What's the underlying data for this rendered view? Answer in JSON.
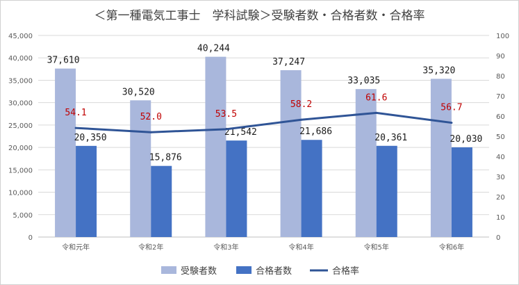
{
  "chart_data": {
    "type": "bar",
    "title": "＜第一種電気工事士　学科試験＞受験者数・合格者数・合格率",
    "categories": [
      "令和元年",
      "令和2年",
      "令和3年",
      "令和4年",
      "令和5年",
      "令和6年"
    ],
    "series": [
      {
        "name": "受験者数",
        "type": "bar",
        "axis": "left",
        "color": "#a9b7dc",
        "values": [
          37610,
          30520,
          40244,
          37247,
          33035,
          35320
        ],
        "labels": [
          "37,610",
          "30,520",
          "40,244",
          "37,247",
          "33,035",
          "35,320"
        ]
      },
      {
        "name": "合格者数",
        "type": "bar",
        "axis": "left",
        "color": "#4472c4",
        "values": [
          20350,
          15876,
          21542,
          21686,
          20361,
          20030
        ],
        "labels": [
          "20,350",
          "15,876",
          "21,542",
          "21,686",
          "20,361",
          "20,030"
        ]
      },
      {
        "name": "合格率",
        "type": "line",
        "axis": "right",
        "color": "#2f5496",
        "values": [
          54.1,
          52.0,
          53.5,
          58.2,
          61.6,
          56.7
        ],
        "labels": [
          "54.1",
          "52.0",
          "53.5",
          "58.2",
          "61.6",
          "56.7"
        ],
        "label_color": "#c00000"
      }
    ],
    "ylim_left": [
      0,
      45000
    ],
    "yticks_left": [
      "0",
      "5,000",
      "10,000",
      "15,000",
      "20,000",
      "25,000",
      "30,000",
      "35,000",
      "40,000",
      "45,000"
    ],
    "ylim_right": [
      0,
      100
    ],
    "yticks_right": [
      "0",
      "10",
      "20",
      "30",
      "40",
      "50",
      "60",
      "70",
      "80",
      "90",
      "100"
    ],
    "grid": true,
    "legend_position": "bottom"
  }
}
